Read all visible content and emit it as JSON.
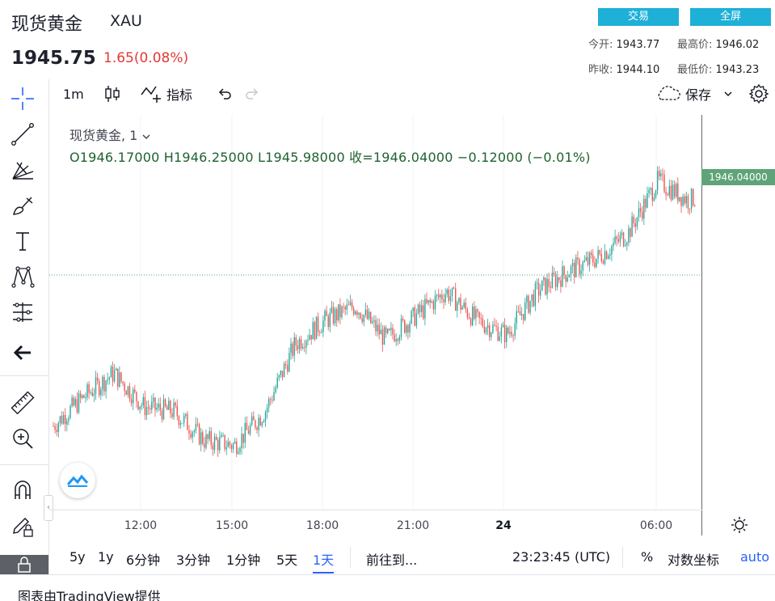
{
  "header": {
    "title": "现货黄金",
    "symbol": "XAU",
    "price": "1945.75",
    "change": "1.65(0.08%)",
    "trade_btn": "交易",
    "fullscreen_btn": "全屏",
    "stats": {
      "open_label": "今开:",
      "open_value": "1943.77",
      "high_label": "最高价:",
      "high_value": "1946.02",
      "prev_label": "昨收:",
      "prev_value": "1944.10",
      "low_label": "最低价:",
      "low_value": "1943.23"
    }
  },
  "toolbar": {
    "interval": "1m",
    "indicators": "指标",
    "save": "保存"
  },
  "legend": {
    "title": "现货黄金, 1",
    "ohlc": "O1946.17000  H1946.25000  L1945.98000  收=1946.04000  −0.12000 (−0.01%)"
  },
  "price_tag": "1946.04000",
  "bottom": {
    "ranges": [
      "5y",
      "1y",
      "6分钟",
      "3分钟",
      "1分钟",
      "5天",
      "1天"
    ],
    "active_range": "1天",
    "goto": "前往到...",
    "clock": "23:23:45 (UTC)",
    "percent": "%",
    "log": "对数坐标",
    "auto": "auto"
  },
  "footer": "图表由TradingView提供",
  "colors": {
    "up": "#26a69a",
    "down": "#ef5350",
    "accent": "#1eb0d7",
    "change": "#e53935",
    "price_tag": "#5fa478"
  },
  "chart_data": {
    "type": "candlestick",
    "x_ticks": [
      "12:00",
      "15:00",
      "18:00",
      "21:00",
      "24",
      "06:00"
    ],
    "last_price": 1946.04,
    "approx_series": [
      {
        "t": "09:00",
        "price": 1942.9
      },
      {
        "t": "10:00",
        "price": 1943.5
      },
      {
        "t": "11:00",
        "price": 1944.0
      },
      {
        "t": "12:00",
        "price": 1943.3
      },
      {
        "t": "13:00",
        "price": 1943.2
      },
      {
        "t": "14:00",
        "price": 1942.6
      },
      {
        "t": "15:00",
        "price": 1942.5
      },
      {
        "t": "16:00",
        "price": 1943.2
      },
      {
        "t": "17:00",
        "price": 1944.6
      },
      {
        "t": "18:00",
        "price": 1945.1
      },
      {
        "t": "19:00",
        "price": 1945.4
      },
      {
        "t": "20:00",
        "price": 1944.7
      },
      {
        "t": "21:00",
        "price": 1945.2
      },
      {
        "t": "22:00",
        "price": 1945.7
      },
      {
        "t": "23:00",
        "price": 1945.1
      },
      {
        "t": "24:00",
        "price": 1944.8
      },
      {
        "t": "01:00",
        "price": 1945.7
      },
      {
        "t": "02:00",
        "price": 1946.1
      },
      {
        "t": "03:00",
        "price": 1946.4
      },
      {
        "t": "04:00",
        "price": 1946.9
      },
      {
        "t": "05:00",
        "price": 1948.0
      },
      {
        "t": "06:00",
        "price": 1947.6
      },
      {
        "t": "07:00",
        "price": 1947.8
      }
    ]
  }
}
